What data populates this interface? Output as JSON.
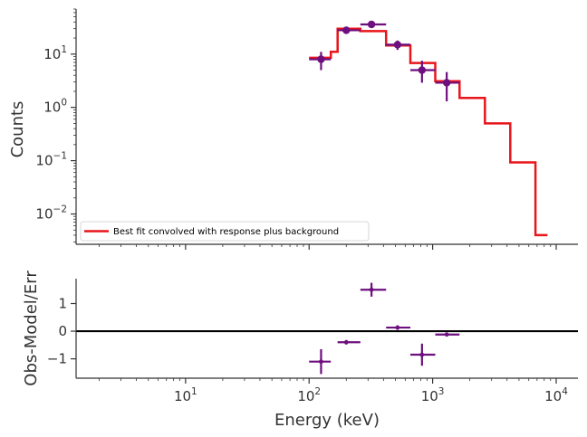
{
  "colors": {
    "model": "#e8151b",
    "data": "#6d0f7e",
    "zero_line": "#000000",
    "axes": "#333333"
  },
  "chart_data": [
    {
      "type": "line",
      "panel": "counts",
      "xlabel": "Energy (keV)",
      "ylabel": "Counts",
      "xscale": "log",
      "yscale": "log",
      "xlim": [
        1.3,
        15000
      ],
      "ylim": [
        0.0027,
        70
      ],
      "x_ticks": [
        {
          "base": "10",
          "exp": "1",
          "value": 10
        },
        {
          "base": "10",
          "exp": "2",
          "value": 100
        },
        {
          "base": "10",
          "exp": "3",
          "value": 1000
        },
        {
          "base": "10",
          "exp": "4",
          "value": 10000
        }
      ],
      "y_ticks": [
        {
          "base": "10",
          "exp": "−2",
          "value": 0.01
        },
        {
          "base": "10",
          "exp": "−1",
          "value": 0.1
        },
        {
          "base": "10",
          "exp": "0",
          "value": 1
        },
        {
          "base": "10",
          "exp": "1",
          "value": 10
        }
      ],
      "legend": {
        "entries": [
          "Best fit convolved with response plus background"
        ],
        "position": "lower-left"
      },
      "series": [
        {
          "name": "Best fit convolved with response plus background",
          "kind": "step",
          "edges": [
            100,
            150,
            170,
            260,
            420,
            660,
            1050,
            1650,
            2650,
            4250,
            6800,
            8500
          ],
          "values": [
            8.5,
            11,
            30,
            27,
            14.5,
            6.8,
            3.1,
            1.5,
            0.5,
            0.093,
            0.004
          ]
        },
        {
          "name": "data",
          "kind": "errorbar",
          "points": [
            {
              "x": 125,
              "xlo": 100,
              "xhi": 150,
              "y": 8.0,
              "ylo": 5.0,
              "yhi": 11.0
            },
            {
              "x": 200,
              "xlo": 170,
              "xhi": 260,
              "y": 28.0,
              "ylo": 24.0,
              "yhi": 32.0
            },
            {
              "x": 320,
              "xlo": 260,
              "xhi": 420,
              "y": 36.0,
              "ylo": 31.0,
              "yhi": 41.0
            },
            {
              "x": 520,
              "xlo": 420,
              "xhi": 660,
              "y": 15.0,
              "ylo": 12.0,
              "yhi": 18.0
            },
            {
              "x": 820,
              "xlo": 660,
              "xhi": 1050,
              "y": 5.0,
              "ylo": 2.9,
              "yhi": 7.5
            },
            {
              "x": 1300,
              "xlo": 1050,
              "xhi": 1650,
              "y": 2.9,
              "ylo": 1.3,
              "yhi": 4.6
            }
          ]
        }
      ]
    },
    {
      "type": "scatter",
      "panel": "residuals",
      "xlabel": "Energy (keV)",
      "ylabel": "Obs-Model/Err",
      "xscale": "log",
      "xlim": [
        1.3,
        15000
      ],
      "ylim": [
        -1.7,
        1.9
      ],
      "x_ticks": [
        {
          "base": "10",
          "exp": "1",
          "value": 10
        },
        {
          "base": "10",
          "exp": "2",
          "value": 100
        },
        {
          "base": "10",
          "exp": "3",
          "value": 1000
        },
        {
          "base": "10",
          "exp": "4",
          "value": 10000
        }
      ],
      "y_ticks": [
        {
          "label": "−1",
          "value": -1
        },
        {
          "label": "0",
          "value": 0
        },
        {
          "label": "1",
          "value": 1
        }
      ],
      "zero_line": 0,
      "points": [
        {
          "x": 125,
          "xlo": 100,
          "xhi": 150,
          "y": -1.1,
          "yerr": 0.45
        },
        {
          "x": 200,
          "xlo": 170,
          "xhi": 260,
          "y": -0.4,
          "yerr": 0.08
        },
        {
          "x": 320,
          "xlo": 260,
          "xhi": 420,
          "y": 1.5,
          "yerr": 0.25
        },
        {
          "x": 520,
          "xlo": 420,
          "xhi": 660,
          "y": 0.13,
          "yerr": 0.08
        },
        {
          "x": 820,
          "xlo": 660,
          "xhi": 1050,
          "y": -0.85,
          "yerr": 0.4
        },
        {
          "x": 1300,
          "xlo": 1050,
          "xhi": 1650,
          "y": -0.12,
          "yerr": 0.05
        }
      ]
    }
  ]
}
